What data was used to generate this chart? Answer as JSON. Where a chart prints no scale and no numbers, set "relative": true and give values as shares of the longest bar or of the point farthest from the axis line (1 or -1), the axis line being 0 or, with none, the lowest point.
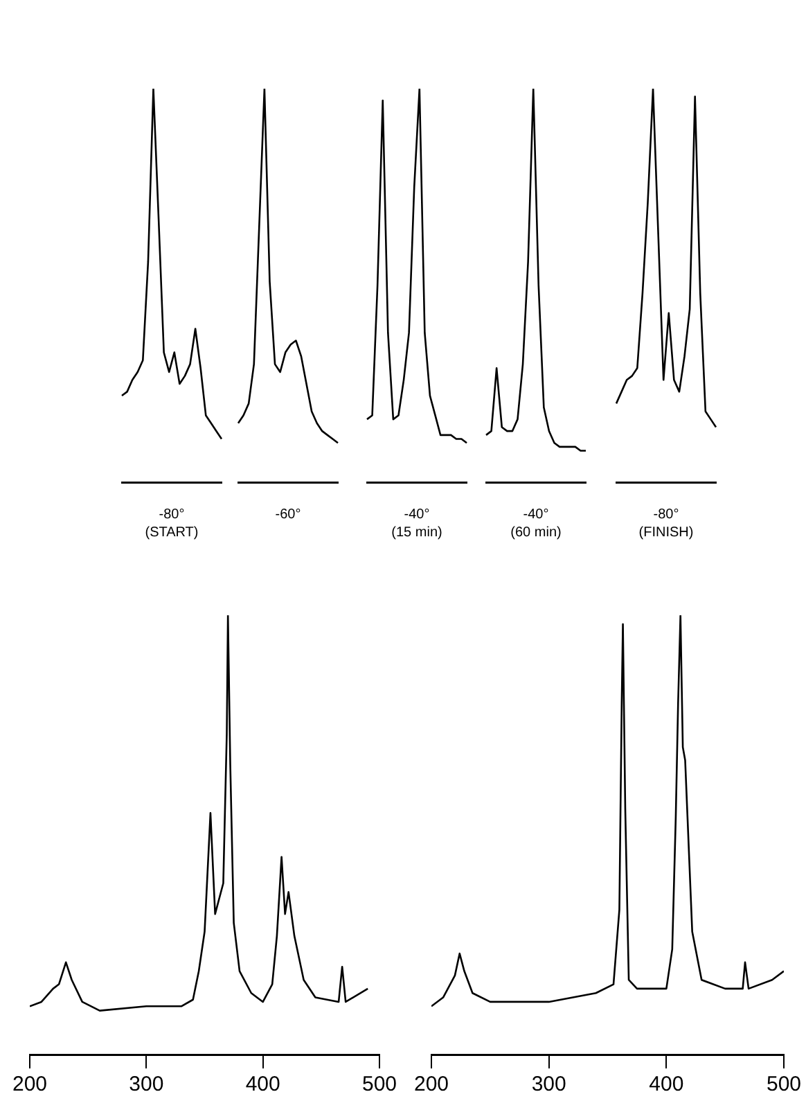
{
  "chart_data": [
    {
      "type": "line",
      "title": "-80°",
      "subtitle": "(START)",
      "relative": true,
      "tick_labels": false,
      "marker": "none",
      "color": "#000000",
      "categories": [
        null,
        null,
        null,
        null,
        null,
        null,
        null,
        null,
        null,
        null,
        null,
        null,
        null,
        null,
        null,
        null,
        null,
        null,
        null,
        null
      ],
      "values": [
        0.22,
        0.23,
        0.26,
        0.28,
        0.31,
        0.56,
        1.0,
        0.67,
        0.33,
        0.28,
        0.33,
        0.25,
        0.27,
        0.3,
        0.39,
        0.29,
        0.17,
        0.15,
        0.13,
        0.11
      ]
    },
    {
      "type": "line",
      "title": "-60°",
      "relative": true,
      "tick_labels": false,
      "marker": "none",
      "color": "#000000",
      "categories": [
        null,
        null,
        null,
        null,
        null,
        null,
        null,
        null,
        null,
        null,
        null,
        null,
        null,
        null,
        null,
        null,
        null,
        null,
        null,
        null
      ],
      "values": [
        0.15,
        0.17,
        0.2,
        0.3,
        0.65,
        1.0,
        0.51,
        0.3,
        0.28,
        0.33,
        0.35,
        0.36,
        0.32,
        0.25,
        0.18,
        0.15,
        0.13,
        0.12,
        0.11,
        0.1
      ]
    },
    {
      "type": "line",
      "title": "-40°",
      "subtitle": "(15 min)",
      "relative": true,
      "tick_labels": false,
      "marker": "none",
      "color": "#000000",
      "categories": [
        null,
        null,
        null,
        null,
        null,
        null,
        null,
        null,
        null,
        null,
        null,
        null,
        null,
        null,
        null,
        null,
        null,
        null,
        null,
        null
      ],
      "values": [
        0.16,
        0.17,
        0.5,
        0.97,
        0.38,
        0.16,
        0.17,
        0.26,
        0.38,
        0.75,
        1.0,
        0.38,
        0.22,
        0.17,
        0.12,
        0.12,
        0.12,
        0.11,
        0.11,
        0.1
      ]
    },
    {
      "type": "line",
      "title": "-40°",
      "subtitle": "(60 min)",
      "relative": true,
      "tick_labels": false,
      "marker": "none",
      "color": "#000000",
      "categories": [
        null,
        null,
        null,
        null,
        null,
        null,
        null,
        null,
        null,
        null,
        null,
        null,
        null,
        null,
        null,
        null,
        null,
        null,
        null,
        null
      ],
      "values": [
        0.12,
        0.13,
        0.29,
        0.14,
        0.13,
        0.13,
        0.16,
        0.3,
        0.56,
        1.0,
        0.5,
        0.19,
        0.13,
        0.1,
        0.09,
        0.09,
        0.09,
        0.09,
        0.08,
        0.08
      ]
    },
    {
      "type": "line",
      "title": "-80°",
      "subtitle": "(FINISH)",
      "relative": true,
      "tick_labels": false,
      "marker": "none",
      "color": "#000000",
      "categories": [
        null,
        null,
        null,
        null,
        null,
        null,
        null,
        null,
        null,
        null,
        null,
        null,
        null,
        null,
        null,
        null,
        null,
        null,
        null,
        null
      ],
      "values": [
        0.2,
        0.23,
        0.26,
        0.27,
        0.29,
        0.48,
        0.71,
        1.0,
        0.63,
        0.26,
        0.43,
        0.26,
        0.23,
        0.32,
        0.44,
        0.98,
        0.48,
        0.18,
        0.16,
        0.14
      ]
    },
    {
      "type": "line",
      "relative": true,
      "tick_labels": "x",
      "marker": "none",
      "color": "#000000",
      "xlim": [
        200,
        500
      ],
      "xticks": [
        200,
        300,
        400,
        500
      ],
      "x": [
        200,
        210,
        220,
        225,
        231,
        236,
        245,
        260,
        300,
        330,
        340,
        345,
        350,
        355,
        359,
        363,
        366,
        369,
        370,
        372,
        375,
        380,
        390,
        400,
        408,
        412,
        416,
        419,
        422,
        427,
        435,
        445,
        465,
        468,
        471,
        490
      ],
      "values": [
        0.11,
        0.12,
        0.15,
        0.16,
        0.21,
        0.17,
        0.12,
        0.1,
        0.11,
        0.11,
        0.125,
        0.19,
        0.28,
        0.55,
        0.32,
        0.36,
        0.39,
        0.73,
        1.0,
        0.66,
        0.3,
        0.19,
        0.14,
        0.12,
        0.16,
        0.27,
        0.45,
        0.32,
        0.37,
        0.27,
        0.17,
        0.13,
        0.12,
        0.2,
        0.12,
        0.15
      ]
    },
    {
      "type": "line",
      "relative": true,
      "tick_labels": "x",
      "marker": "none",
      "color": "#000000",
      "xlim": [
        200,
        500
      ],
      "xticks": [
        200,
        300,
        400,
        500
      ],
      "x": [
        200,
        210,
        220,
        224,
        228,
        235,
        250,
        300,
        340,
        355,
        360,
        362,
        363,
        365,
        368,
        375,
        400,
        405,
        408,
        410,
        412,
        414,
        416,
        418,
        422,
        430,
        450,
        465,
        467,
        470,
        490,
        500
      ],
      "values": [
        0.11,
        0.13,
        0.18,
        0.23,
        0.19,
        0.14,
        0.12,
        0.12,
        0.14,
        0.16,
        0.33,
        0.8,
        0.98,
        0.56,
        0.17,
        0.15,
        0.15,
        0.24,
        0.54,
        0.8,
        1.0,
        0.7,
        0.67,
        0.54,
        0.28,
        0.17,
        0.15,
        0.15,
        0.21,
        0.15,
        0.17,
        0.19
      ]
    }
  ]
}
